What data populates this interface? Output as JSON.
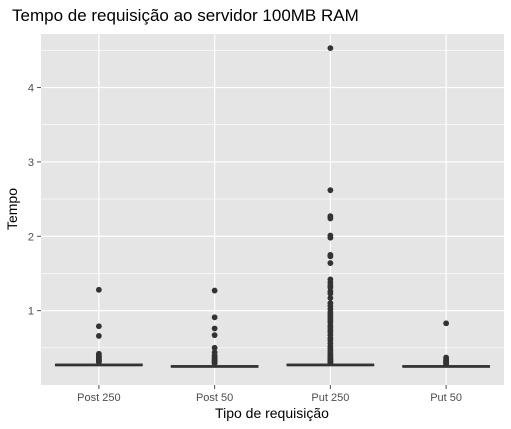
{
  "chart_data": {
    "type": "boxplot",
    "title": "Tempo de requisição ao servidor 100MB RAM",
    "xlabel": "Tipo de requisição",
    "ylabel": "Tempo",
    "categories": [
      "Post 250",
      "Post 50",
      "Put 250",
      "Put 50"
    ],
    "yticks": [
      1,
      2,
      3,
      4
    ],
    "ylim": [
      0,
      4.72
    ],
    "grid": true,
    "colors": {
      "panel": "#e5e5e5",
      "grid": "#ffffff",
      "points": "#333333",
      "box": "#333333",
      "ticks": "#4d4d4d"
    },
    "boxes": [
      {
        "category": "Post 250",
        "median": 0.27,
        "q1": 0.26,
        "q3": 0.28,
        "outliers": [
          1.28,
          0.79,
          0.66,
          0.42,
          0.4,
          0.38,
          0.37,
          0.35,
          0.34,
          0.33,
          0.32,
          0.31
        ]
      },
      {
        "category": "Post 50",
        "median": 0.25,
        "q1": 0.24,
        "q3": 0.26,
        "outliers": [
          1.27,
          0.91,
          0.76,
          0.67,
          0.5,
          0.44,
          0.4,
          0.38,
          0.36,
          0.34,
          0.33,
          0.32,
          0.31,
          0.3,
          0.29
        ]
      },
      {
        "category": "Put 250",
        "median": 0.27,
        "q1": 0.26,
        "q3": 0.28,
        "outliers": [
          4.53,
          2.62,
          2.27,
          2.24,
          2.01,
          1.98,
          1.75,
          1.73,
          1.64,
          1.42,
          1.38,
          1.34,
          1.31,
          1.26,
          1.23,
          1.17,
          1.1,
          1.06,
          1.02,
          0.98,
          0.95,
          0.92,
          0.89,
          0.86,
          0.84,
          0.8,
          0.77,
          0.74,
          0.71,
          0.67,
          0.63,
          0.6,
          0.56,
          0.52,
          0.49,
          0.46,
          0.43,
          0.41,
          0.39,
          0.37,
          0.35,
          0.34,
          0.33,
          0.32,
          0.31,
          0.3
        ]
      },
      {
        "category": "Put 50",
        "median": 0.25,
        "q1": 0.24,
        "q3": 0.26,
        "outliers": [
          0.83,
          0.37,
          0.35,
          0.33,
          0.32,
          0.31,
          0.3,
          0.29,
          0.28
        ]
      }
    ]
  }
}
